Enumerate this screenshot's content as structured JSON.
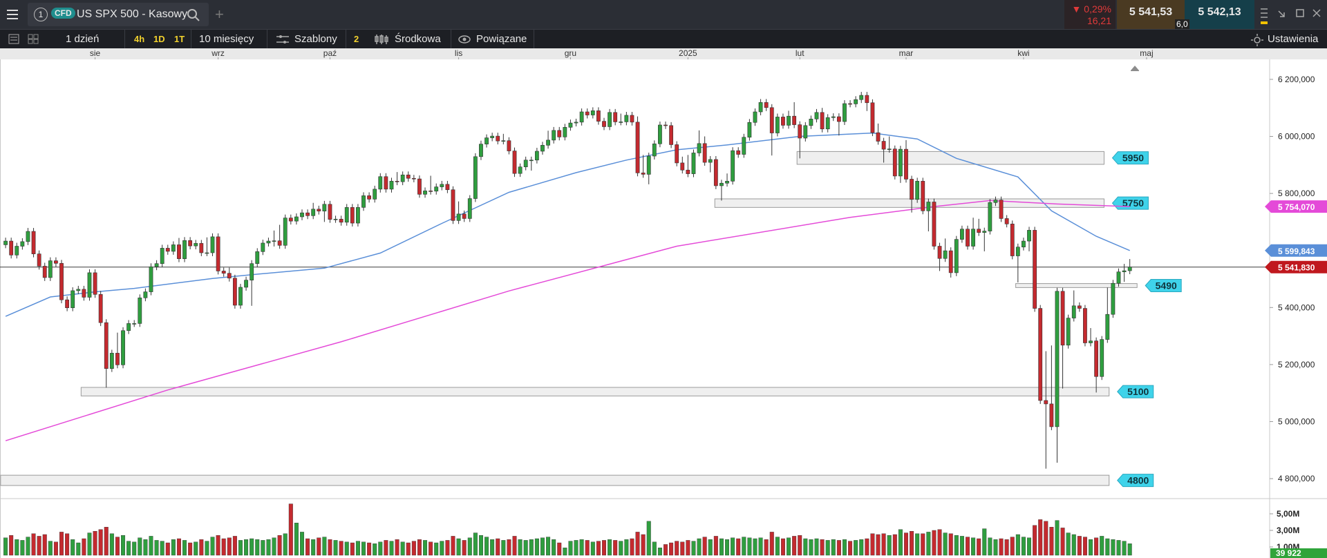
{
  "toolbar": {
    "tab_number": "1",
    "tab_badge": "CFD",
    "instrument": "US SPX 500 - Kasowy",
    "change_pct": "0,29%",
    "change_abs": "16,21",
    "sell": "5 541,53",
    "buy": "5 542,13",
    "spread": "6,0"
  },
  "toolbar2": {
    "interval": "1 dzień",
    "quick": [
      "4h",
      "1D",
      "1T"
    ],
    "range": "10 miesięcy",
    "templates": "Szablony",
    "count": "2",
    "mode": "Środkowa",
    "related": "Powiązane",
    "settings": "Ustawienia"
  },
  "chart_data": {
    "type": "candlestick",
    "up_color": "#2f9e3f",
    "down_color": "#c42a2f",
    "open": [
      5620,
      5633,
      5584,
      5615,
      5631,
      5667,
      5588,
      5545,
      5505,
      5564,
      5555,
      5427,
      5399,
      5459,
      5464,
      5436,
      5522,
      5446,
      5347,
      5186,
      5240,
      5199,
      5319,
      5344,
      5344,
      5434,
      5455,
      5543,
      5554,
      5608,
      5597,
      5620,
      5571,
      5635,
      5616,
      5625,
      5592,
      5592,
      5648,
      5528,
      5520,
      5503,
      5408,
      5471,
      5496,
      5554,
      5596,
      5626,
      5633,
      5634,
      5618,
      5714,
      5703,
      5718,
      5732,
      5722,
      5745,
      5738,
      5762,
      5709,
      5710,
      5699,
      5751,
      5696,
      5751,
      5792,
      5780,
      5815,
      5859,
      5815,
      5843,
      5841,
      5865,
      5853,
      5851,
      5797,
      5809,
      5808,
      5823,
      5832,
      5813,
      5705,
      5728,
      5712,
      5782,
      5929,
      5973,
      5995,
      6001,
      5984,
      5985,
      5949,
      5870,
      5893,
      5917,
      5917,
      5948,
      5969,
      5987,
      6021,
      5998,
      6032,
      6047,
      6050,
      6086,
      6075,
      6090,
      6053,
      6034,
      6084,
      6051,
      6051,
      6074,
      6050,
      5872,
      5867,
      5931,
      5974,
      6040,
      6038,
      5971,
      5907,
      5882,
      5869,
      5942,
      5975,
      5909,
      5919,
      5827,
      5836,
      5843,
      5950,
      5937,
      5997,
      6049,
      6086,
      6119,
      6101,
      6012,
      6068,
      6039,
      6071,
      6041,
      5994,
      6038,
      6061,
      6084,
      6026,
      6066,
      6069,
      6052,
      6115,
      6114,
      6129,
      6144,
      6118,
      6013,
      5983,
      5955,
      5956,
      5861,
      5955,
      5850,
      5779,
      5843,
      5739,
      5770,
      5615,
      5572,
      5599,
      5522,
      5639,
      5675,
      5615,
      5675,
      5663,
      5668,
      5768,
      5777,
      5712,
      5693,
      5581,
      5612,
      5633,
      5671,
      5397,
      5074,
      5062,
      4982,
      5457,
      5268,
      5363,
      5406,
      5397,
      5276,
      5283,
      5158,
      5288,
      5376,
      5485,
      5525,
      5529
    ],
    "high": [
      5645,
      5645,
      5627,
      5643,
      5679,
      5679,
      5600,
      5557,
      5576,
      5576,
      5567,
      5439,
      5471,
      5476,
      5476,
      5534,
      5534,
      5458,
      5359,
      5252,
      5312,
      5331,
      5356,
      5356,
      5446,
      5467,
      5555,
      5566,
      5620,
      5620,
      5632,
      5644,
      5647,
      5647,
      5637,
      5637,
      5646,
      5660,
      5660,
      5540,
      5540,
      5515,
      5483,
      5508,
      5566,
      5608,
      5638,
      5645,
      5670,
      5690,
      5726,
      5726,
      5730,
      5744,
      5744,
      5767,
      5757,
      5774,
      5774,
      5722,
      5722,
      5763,
      5763,
      5763,
      5804,
      5804,
      5827,
      5871,
      5871,
      5855,
      5875,
      5877,
      5877,
      5865,
      5863,
      5821,
      5862,
      5835,
      5844,
      5844,
      5825,
      5772,
      5740,
      5794,
      5941,
      5985,
      6007,
      6013,
      6013,
      6009,
      5997,
      5961,
      5905,
      5929,
      5929,
      5960,
      5981,
      6020,
      6033,
      6033,
      6044,
      6059,
      6062,
      6098,
      6098,
      6102,
      6102,
      6065,
      6096,
      6096,
      6080,
      6086,
      6086,
      6070,
      5935,
      5943,
      5986,
      6052,
      6052,
      6050,
      5983,
      5929,
      5935,
      5954,
      6021,
      6000,
      5931,
      5931,
      5848,
      5870,
      5962,
      5962,
      6009,
      6061,
      6098,
      6131,
      6131,
      6113,
      6080,
      6080,
      6090,
      6120,
      6053,
      6050,
      6073,
      6096,
      6100,
      6078,
      6081,
      6081,
      6127,
      6127,
      6141,
      6156,
      6156,
      6130,
      6045,
      5995,
      6000,
      5968,
      5967,
      5987,
      5862,
      5855,
      5855,
      5782,
      5782,
      5627,
      5642,
      5611,
      5651,
      5687,
      5687,
      5715,
      5711,
      5680,
      5780,
      5789,
      5789,
      5724,
      5705,
      5624,
      5645,
      5683,
      5683,
      5409,
      5247,
      5267,
      5469,
      5469,
      5375,
      5460,
      5418,
      5409,
      5328,
      5295,
      5300,
      5470,
      5497,
      5537,
      5553,
      5570
    ],
    "low": [
      5608,
      5572,
      5572,
      5603,
      5619,
      5576,
      5533,
      5493,
      5493,
      5543,
      5415,
      5387,
      5387,
      5447,
      5424,
      5424,
      5434,
      5335,
      5119,
      5174,
      5187,
      5187,
      5307,
      5332,
      5332,
      5422,
      5443,
      5531,
      5542,
      5585,
      5585,
      5559,
      5559,
      5604,
      5604,
      5580,
      5580,
      5580,
      5516,
      5508,
      5491,
      5396,
      5396,
      5459,
      5406,
      5542,
      5584,
      5614,
      5614,
      5606,
      5606,
      5691,
      5691,
      5706,
      5710,
      5710,
      5726,
      5700,
      5697,
      5697,
      5687,
      5687,
      5684,
      5684,
      5739,
      5768,
      5768,
      5803,
      5803,
      5803,
      5829,
      5829,
      5841,
      5839,
      5785,
      5785,
      5796,
      5796,
      5811,
      5801,
      5693,
      5693,
      5700,
      5700,
      5770,
      5917,
      5961,
      5983,
      5972,
      5972,
      5937,
      5858,
      5858,
      5881,
      5880,
      5905,
      5936,
      5957,
      5975,
      5986,
      5986,
      6020,
      6035,
      6038,
      6063,
      6063,
      6041,
      6022,
      6022,
      6039,
      6039,
      6039,
      6038,
      5860,
      5855,
      5832,
      5919,
      5962,
      6026,
      5959,
      5895,
      5870,
      5857,
      5857,
      5930,
      5897,
      5874,
      5815,
      5775,
      5824,
      5831,
      5925,
      5925,
      5985,
      6037,
      6074,
      6089,
      5933,
      6000,
      6027,
      6027,
      6029,
      5923,
      5982,
      6026,
      6049,
      6014,
      6014,
      6054,
      6003,
      6040,
      6102,
      6102,
      6117,
      6089,
      6001,
      5971,
      5908,
      5943,
      5849,
      5837,
      5838,
      5733,
      5767,
      5727,
      5667,
      5603,
      5528,
      5560,
      5505,
      5510,
      5627,
      5603,
      5603,
      5651,
      5597,
      5656,
      5756,
      5700,
      5681,
      5569,
      5488,
      5600,
      5597,
      5385,
      5062,
      4835,
      4970,
      4856,
      5116,
      5256,
      5351,
      5385,
      5264,
      5264,
      5102,
      5146,
      5276,
      5364,
      5473,
      5490,
      5517
    ],
    "close": [
      5633,
      5584,
      5615,
      5631,
      5667,
      5588,
      5545,
      5505,
      5564,
      5555,
      5427,
      5399,
      5459,
      5464,
      5436,
      5522,
      5446,
      5347,
      5186,
      5240,
      5199,
      5319,
      5344,
      5344,
      5434,
      5455,
      5543,
      5554,
      5608,
      5597,
      5620,
      5571,
      5635,
      5616,
      5625,
      5592,
      5592,
      5648,
      5528,
      5520,
      5503,
      5408,
      5471,
      5496,
      5554,
      5596,
      5626,
      5633,
      5634,
      5618,
      5714,
      5703,
      5718,
      5732,
      5722,
      5745,
      5738,
      5762,
      5709,
      5710,
      5699,
      5751,
      5696,
      5751,
      5792,
      5780,
      5815,
      5859,
      5815,
      5843,
      5841,
      5865,
      5853,
      5851,
      5797,
      5809,
      5808,
      5823,
      5832,
      5813,
      5705,
      5728,
      5712,
      5782,
      5929,
      5973,
      5995,
      6001,
      5984,
      5985,
      5949,
      5870,
      5893,
      5917,
      5917,
      5948,
      5969,
      5987,
      6021,
      5998,
      6032,
      6047,
      6050,
      6086,
      6075,
      6090,
      6053,
      6034,
      6084,
      6051,
      6051,
      6074,
      6050,
      5872,
      5867,
      5931,
      5974,
      6040,
      6038,
      5971,
      5907,
      5882,
      5869,
      5942,
      5975,
      5909,
      5919,
      5827,
      5836,
      5843,
      5950,
      5937,
      5997,
      6049,
      6086,
      6119,
      6101,
      6012,
      6068,
      6039,
      6071,
      6041,
      5994,
      6038,
      6061,
      6084,
      6026,
      6066,
      6069,
      6052,
      6115,
      6114,
      6129,
      6144,
      6118,
      6013,
      5983,
      5955,
      5956,
      5861,
      5955,
      5850,
      5779,
      5843,
      5739,
      5770,
      5615,
      5572,
      5599,
      5522,
      5639,
      5675,
      5615,
      5675,
      5663,
      5668,
      5768,
      5777,
      5712,
      5693,
      5581,
      5612,
      5633,
      5671,
      5397,
      5074,
      5062,
      4982,
      5457,
      5268,
      5363,
      5406,
      5397,
      5276,
      5283,
      5158,
      5288,
      5376,
      5485,
      5525,
      5529,
      5542
    ],
    "xlim": [
      -1,
      226
    ],
    "xticks": [
      {
        "value": 16,
        "label": "sie"
      },
      {
        "value": 38,
        "label": "wrz"
      },
      {
        "value": 58,
        "label": "paź"
      },
      {
        "value": 81,
        "label": "lis"
      },
      {
        "value": 101,
        "label": "gru"
      },
      {
        "value": 122,
        "label": "2025"
      },
      {
        "value": 142,
        "label": "lut"
      },
      {
        "value": 161,
        "label": "mar"
      },
      {
        "value": 182,
        "label": "kwi"
      },
      {
        "value": 204,
        "label": "maj"
      }
    ],
    "ylim": [
      4730,
      6270
    ],
    "yticks": [
      {
        "value": 6200,
        "label": "6 200,000"
      },
      {
        "value": 6000,
        "label": "6 000,000"
      },
      {
        "value": 5800,
        "label": "5 800,000"
      },
      {
        "value": 5400,
        "label": "5 400,000"
      },
      {
        "value": 5200,
        "label": "5 200,000"
      },
      {
        "value": 5000,
        "label": "5 000,000"
      },
      {
        "value": 4800,
        "label": "4 800,000"
      }
    ],
    "moving_averages": [
      {
        "color": "#5a8fd8",
        "x": [
          0,
          8,
          16,
          23,
          37,
          45,
          57,
          67,
          78,
          90,
          102,
          111,
          120,
          129,
          142,
          155,
          163,
          170,
          181,
          187,
          195,
          201
        ],
        "values": [
          5369,
          5437,
          5455,
          5467,
          5502,
          5517,
          5538,
          5591,
          5695,
          5804,
          5873,
          5917,
          5953,
          5970,
          6000,
          6012,
          5991,
          5923,
          5858,
          5739,
          5650,
          5599.843
        ],
        "last": {
          "value": 5599.843,
          "label": "5 599,843"
        }
      },
      {
        "color": "#e44ad8",
        "x": [
          0,
          29,
          60,
          90,
          120,
          151,
          166,
          176,
          188,
          201
        ],
        "values": [
          4933,
          5111,
          5280,
          5458,
          5615,
          5716,
          5754,
          5775,
          5763,
          5754.07
        ],
        "last": {
          "value": 5754.07,
          "label": "5 754,070"
        }
      }
    ],
    "last_price": {
      "value": 5541.83,
      "label": "5 541,830",
      "color": "#c0181e"
    },
    "zones": [
      {
        "level": 5950,
        "range": [
          5902,
          5947
        ],
        "span": [
          141.5,
          196.4
        ]
      },
      {
        "level": 5750,
        "range": [
          5751,
          5781
        ],
        "span": [
          126.8,
          196.4
        ]
      },
      {
        "level": 5490,
        "range": [
          5470,
          5484
        ],
        "span": [
          180.6,
          202.3
        ]
      },
      {
        "level": 5100,
        "range": [
          5090,
          5120
        ],
        "span": [
          13.5,
          197.3
        ]
      },
      {
        "level": 4800,
        "range": [
          4776,
          4812
        ],
        "span": [
          -0.9,
          197.3
        ]
      }
    ],
    "volume": {
      "values": [
        2.1,
        2.4,
        1.9,
        1.8,
        2.2,
        2.6,
        2.3,
        2.5,
        1.7,
        1.6,
        2.8,
        2.6,
        1.9,
        1.5,
        2.0,
        2.7,
        2.9,
        3.1,
        3.4,
        2.6,
        2.2,
        2.4,
        1.7,
        1.6,
        2.1,
        1.9,
        2.3,
        1.8,
        1.7,
        1.5,
        1.9,
        2.0,
        1.8,
        1.5,
        1.6,
        1.9,
        1.7,
        2.2,
        2.4,
        2.0,
        2.1,
        2.3,
        1.8,
        1.9,
        2.0,
        1.9,
        1.8,
        1.9,
        2.1,
        2.4,
        2.6,
        6.2,
        3.9,
        2.8,
        2.0,
        1.9,
        2.1,
        2.2,
        1.9,
        1.8,
        1.7,
        1.6,
        1.5,
        1.7,
        1.6,
        1.5,
        1.4,
        1.6,
        1.8,
        1.7,
        1.9,
        1.6,
        1.5,
        1.7,
        1.9,
        1.8,
        1.6,
        1.5,
        1.7,
        1.8,
        2.3,
        2.0,
        1.8,
        2.1,
        2.7,
        2.4,
        2.2,
        1.9,
        2.0,
        1.8,
        1.9,
        2.3,
        1.9,
        1.8,
        1.9,
        2.0,
        2.1,
        2.2,
        1.9,
        1.5,
        0.9,
        1.7,
        1.8,
        1.9,
        1.8,
        1.6,
        1.7,
        1.8,
        1.9,
        1.8,
        1.7,
        1.9,
        2.0,
        2.8,
        2.5,
        4.1,
        1.6,
        0.9,
        1.3,
        1.5,
        1.7,
        1.6,
        1.8,
        1.7,
        2.0,
        2.2,
        1.9,
        2.3,
        2.0,
        1.9,
        2.1,
        2.0,
        2.2,
        2.1,
        2.0,
        2.1,
        1.9,
        2.8,
        2.2,
        2.0,
        2.1,
        2.3,
        2.4,
        2.0,
        1.9,
        2.0,
        1.9,
        1.8,
        1.9,
        1.8,
        1.9,
        1.7,
        1.8,
        1.9,
        2.0,
        2.6,
        2.5,
        2.6,
        2.4,
        2.5,
        3.1,
        2.7,
        2.9,
        2.6,
        2.6,
        2.8,
        3.0,
        3.1,
        2.7,
        2.6,
        2.4,
        2.3,
        2.2,
        2.1,
        2.0,
        3.2,
        2.1,
        1.9,
        2.0,
        1.9,
        2.2,
        2.5,
        2.2,
        2.1,
        3.6,
        4.3,
        4.1,
        3.4,
        4.2,
        3.3,
        2.7,
        2.5,
        2.3,
        2.2,
        1.9,
        2.1,
        2.3,
        2.0,
        1.9,
        1.8,
        1.7,
        1.4
      ],
      "ylim": [
        0,
        6.5
      ],
      "yticks": [
        {
          "value": 5,
          "label": "5,00M"
        },
        {
          "value": 3,
          "label": "3,00M"
        },
        {
          "value": 1,
          "label": "1,00M"
        }
      ],
      "badge": "39 922"
    }
  }
}
